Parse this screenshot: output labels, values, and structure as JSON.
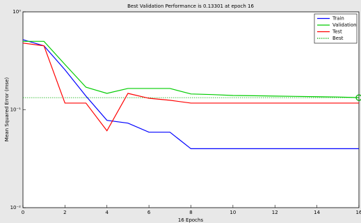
{
  "chart_data": {
    "type": "line",
    "title": "Best Validation Performance is 0.13301 at epoch 16",
    "x_label": "16 Epochs",
    "y_label": "Mean Squared Error  (mse)",
    "x": [
      0,
      1,
      2,
      3,
      4,
      5,
      6,
      7,
      8,
      9,
      10,
      11,
      12,
      13,
      14,
      15,
      16
    ],
    "series": [
      {
        "name": "Train",
        "color": "#0000ff",
        "values": [
          0.52,
          0.45,
          0.256,
          0.138,
          0.078,
          0.073,
          0.059,
          0.059,
          0.04,
          0.04,
          0.04,
          0.04,
          0.04,
          0.04,
          0.04,
          0.04,
          0.04
        ]
      },
      {
        "name": "Validation",
        "color": "#00cc00",
        "values": [
          0.5,
          0.5,
          0.29,
          0.17,
          0.147,
          0.165,
          0.165,
          0.165,
          0.145,
          0.143,
          0.14,
          0.139,
          0.138,
          0.137,
          0.136,
          0.135,
          0.13301
        ]
      },
      {
        "name": "Test",
        "color": "#ff0000",
        "values": [
          0.48,
          0.45,
          0.117,
          0.117,
          0.061,
          0.147,
          0.131,
          0.125,
          0.117,
          0.117,
          0.117,
          0.117,
          0.117,
          0.117,
          0.117,
          0.117,
          0.117
        ]
      }
    ],
    "best": {
      "name": "Best",
      "color": "#00aa00",
      "epoch": 16,
      "value": 0.13301
    },
    "xlim": [
      0,
      16
    ],
    "xticks": [
      0,
      2,
      4,
      6,
      8,
      10,
      12,
      14,
      16
    ],
    "ylim": [
      0.01,
      1
    ],
    "log_y": true,
    "yticks": [
      {
        "value": 1,
        "label": "10⁰"
      },
      {
        "value": 0.1,
        "label": "10⁻¹"
      },
      {
        "value": 0.01,
        "label": "10⁻²"
      }
    ],
    "legend": "upper-right"
  }
}
